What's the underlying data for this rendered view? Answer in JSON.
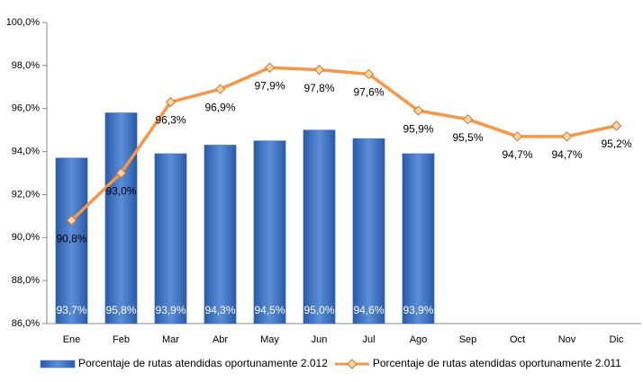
{
  "chart_data": {
    "type": "bar",
    "categories": [
      "Ene",
      "Feb",
      "Mar",
      "Abr",
      "May",
      "Jun",
      "Jul",
      "Ago",
      "Sep",
      "Oct",
      "Nov",
      "Dic"
    ],
    "series": [
      {
        "name": "Porcentaje de rutas atendidas oportunamente 2.012",
        "type": "bar",
        "color": "#3f73c2",
        "values": [
          93.7,
          95.8,
          93.9,
          94.3,
          94.5,
          95.0,
          94.6,
          93.9,
          null,
          null,
          null,
          null
        ],
        "value_labels": [
          "93,7%",
          "95,8%",
          "93,9%",
          "94,3%",
          "94,5%",
          "95,0%",
          "94,6%",
          "93,9%",
          null,
          null,
          null,
          null
        ]
      },
      {
        "name": "Porcentaje de rutas atendidas oportunamente 2.011",
        "type": "line",
        "color": "#f79646",
        "values": [
          90.8,
          93.0,
          96.3,
          96.9,
          97.9,
          97.8,
          97.6,
          95.9,
          95.5,
          94.7,
          94.7,
          95.2
        ],
        "value_labels": [
          "90,8%",
          "93,0%",
          "96,3%",
          "96,9%",
          "97,9%",
          "97,8%",
          "97,6%",
          "95,9%",
          "95,5%",
          "94,7%",
          "94,7%",
          "95,2%"
        ]
      }
    ],
    "ylim": [
      86,
      100
    ],
    "yticks": [
      {
        "value": 86,
        "label": "86,0%"
      },
      {
        "value": 88,
        "label": "88,0%"
      },
      {
        "value": 90,
        "label": "90,0%"
      },
      {
        "value": 92,
        "label": "92,0%"
      },
      {
        "value": 94,
        "label": "94,0%"
      },
      {
        "value": 96,
        "label": "96,0%"
      },
      {
        "value": 98,
        "label": "98,0%"
      },
      {
        "value": 100,
        "label": "100,0%"
      }
    ],
    "legend": "bottom"
  }
}
